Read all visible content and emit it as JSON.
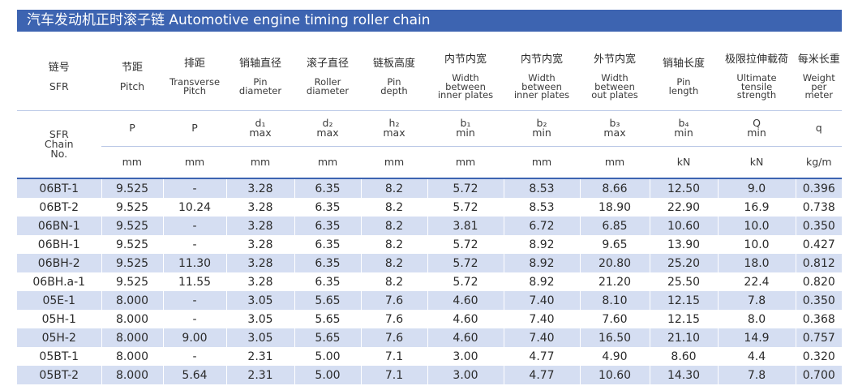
{
  "title": "汽车发动机正时滚子链  Automotive engine timing roller chain",
  "columns": [
    {
      "zh": "链号",
      "en": [
        "SFR"
      ],
      "sym": [],
      "unit": ""
    },
    {
      "zh": "节距",
      "en": [
        "Pitch"
      ],
      "sym": [
        "P"
      ],
      "unit": "mm"
    },
    {
      "zh": "排距",
      "en": [
        "Transverse",
        "Pitch"
      ],
      "sym": [
        "P"
      ],
      "unit": "mm"
    },
    {
      "zh": "销轴直径",
      "en": [
        "Pin",
        "diameter"
      ],
      "sym": [
        "d₁",
        "max"
      ],
      "unit": "mm"
    },
    {
      "zh": "滚子直径",
      "en": [
        "Roller",
        "diameter"
      ],
      "sym": [
        "d₂",
        "max"
      ],
      "unit": "mm"
    },
    {
      "zh": "链板高度",
      "en": [
        "Pin",
        "depth"
      ],
      "sym": [
        "h₂",
        "max"
      ],
      "unit": "mm"
    },
    {
      "zh": "内节内宽",
      "en": [
        "Width",
        "between",
        "inner plates"
      ],
      "sym": [
        "b₁",
        "min"
      ],
      "unit": "mm"
    },
    {
      "zh": "内节内宽",
      "en": [
        "Width",
        "between",
        "inner plates"
      ],
      "sym": [
        "b₂",
        "min"
      ],
      "unit": "mm"
    },
    {
      "zh": "外节内宽",
      "en": [
        "Width",
        "between",
        "out plates"
      ],
      "sym": [
        "b₃",
        "max"
      ],
      "unit": "mm"
    },
    {
      "zh": "销轴长度",
      "en": [
        "Pin",
        "length"
      ],
      "sym": [
        "b₄",
        "min"
      ],
      "unit": "kN"
    },
    {
      "zh": "极限拉伸载荷",
      "en": [
        "Ultimate",
        "tensile",
        "strength"
      ],
      "sym": [
        "Q",
        "min"
      ],
      "unit": "kN"
    },
    {
      "zh": "每米长重",
      "en": [
        "Weight",
        "per",
        "meter"
      ],
      "sym": [
        "q"
      ],
      "unit": "kg/m"
    }
  ],
  "chain_no_label": [
    "SFR",
    "Chain",
    "No."
  ],
  "rows": [
    [
      "06BT-1",
      "9.525",
      "-",
      "3.28",
      "6.35",
      "8.2",
      "5.72",
      "8.53",
      "8.66",
      "12.50",
      "9.0",
      "0.396"
    ],
    [
      "06BT-2",
      "9.525",
      "10.24",
      "3.28",
      "6.35",
      "8.2",
      "5.72",
      "8.53",
      "18.90",
      "22.90",
      "16.9",
      "0.738"
    ],
    [
      "06BN-1",
      "9.525",
      "-",
      "3.28",
      "6.35",
      "8.2",
      "3.81",
      "6.72",
      "6.85",
      "10.60",
      "10.0",
      "0.350"
    ],
    [
      "06BH-1",
      "9.525",
      "-",
      "3.28",
      "6.35",
      "8.2",
      "5.72",
      "8.92",
      "9.65",
      "13.90",
      "10.0",
      "0.427"
    ],
    [
      "06BH-2",
      "9.525",
      "11.30",
      "3.28",
      "6.35",
      "8.2",
      "5.72",
      "8.92",
      "20.80",
      "25.20",
      "18.0",
      "0.812"
    ],
    [
      "06BH.a-1",
      "9.525",
      "11.55",
      "3.28",
      "6.35",
      "8.2",
      "5.72",
      "8.92",
      "21.20",
      "25.50",
      "22.4",
      "0.820"
    ],
    [
      "05E-1",
      "8.000",
      "-",
      "3.05",
      "5.65",
      "7.6",
      "4.60",
      "7.40",
      "8.10",
      "12.15",
      "7.8",
      "0.350"
    ],
    [
      "05H-1",
      "8.000",
      "-",
      "3.05",
      "5.65",
      "7.6",
      "4.60",
      "7.40",
      "7.60",
      "12.15",
      "8.0",
      "0.368"
    ],
    [
      "05H-2",
      "8.000",
      "9.00",
      "3.05",
      "5.65",
      "7.6",
      "4.60",
      "7.40",
      "16.50",
      "21.10",
      "14.9",
      "0.757"
    ],
    [
      "05BT-1",
      "8.000",
      "-",
      "2.31",
      "5.00",
      "7.1",
      "3.00",
      "4.77",
      "4.90",
      "8.60",
      "4.4",
      "0.320"
    ],
    [
      "05BT-2",
      "8.000",
      "5.64",
      "2.31",
      "5.00",
      "7.1",
      "3.00",
      "4.77",
      "10.60",
      "14.30",
      "7.8",
      "0.700"
    ]
  ],
  "colors": {
    "accent": "#3d64b1",
    "stripe": "#d5def2",
    "header_rule": "#b9c7e6"
  }
}
